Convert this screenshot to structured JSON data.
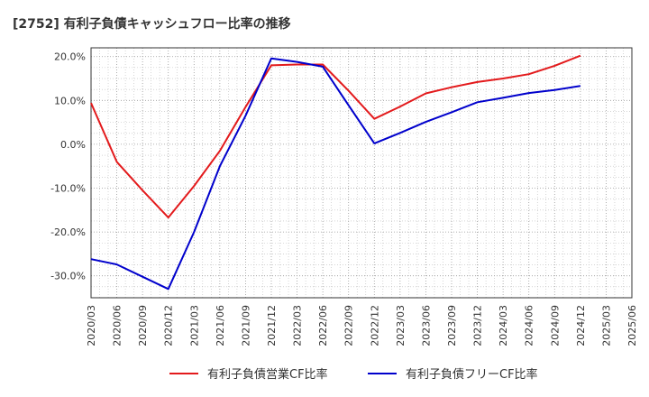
{
  "chart_data": {
    "type": "line",
    "title": "[2752]  有利子負債キャッシュフロー比率の推移",
    "xlabel": "",
    "ylabel": "",
    "ylim": [
      -35,
      22
    ],
    "y_ticks": [
      20,
      10,
      0,
      -10,
      -20,
      -30
    ],
    "y_tick_labels": [
      "20.0%",
      "10.0%",
      "0.0%",
      "-10.0%",
      "-20.0%",
      "-30.0%"
    ],
    "x_ticks": [
      "2020/03",
      "2020/06",
      "2020/09",
      "2020/12",
      "2021/03",
      "2021/06",
      "2021/09",
      "2021/12",
      "2022/03",
      "2022/06",
      "2022/09",
      "2022/12",
      "2023/03",
      "2023/06",
      "2023/09",
      "2023/12",
      "2024/03",
      "2024/06",
      "2024/09",
      "2024/12",
      "2025/03",
      "2025/06"
    ],
    "grid": true,
    "legend_position": "bottom",
    "series": [
      {
        "name": "有利子負債営業CF比率",
        "color": "#e31a1c",
        "points": [
          [
            "2020/03",
            9.4
          ],
          [
            "2020/06",
            -4.0
          ],
          [
            "2020/09",
            -10.5
          ],
          [
            "2020/12",
            -16.7
          ],
          [
            "2021/03",
            -9.5
          ],
          [
            "2021/06",
            -1.5
          ],
          [
            "2021/09",
            8.5
          ],
          [
            "2021/12",
            18.0
          ],
          [
            "2022/03",
            18.2
          ],
          [
            "2022/06",
            18.2
          ],
          [
            "2022/09",
            12.2
          ],
          [
            "2022/12",
            5.8
          ],
          [
            "2023/03",
            8.6
          ],
          [
            "2023/06",
            11.6
          ],
          [
            "2023/09",
            13.0
          ],
          [
            "2023/12",
            14.2
          ],
          [
            "2024/03",
            15.0
          ],
          [
            "2024/06",
            16.0
          ],
          [
            "2024/09",
            17.9
          ],
          [
            "2024/12",
            20.2
          ]
        ]
      },
      {
        "name": "有利子負債フリーCF比率",
        "color": "#0000cc",
        "points": [
          [
            "2020/03",
            -26.2
          ],
          [
            "2020/06",
            -27.4
          ],
          [
            "2020/09",
            -30.2
          ],
          [
            "2020/12",
            -33.0
          ],
          [
            "2021/03",
            -20.0
          ],
          [
            "2021/06",
            -5.0
          ],
          [
            "2021/09",
            6.5
          ],
          [
            "2021/12",
            19.6
          ],
          [
            "2022/03",
            18.8
          ],
          [
            "2022/06",
            17.7
          ],
          [
            "2022/09",
            8.9
          ],
          [
            "2022/12",
            0.2
          ],
          [
            "2023/03",
            2.6
          ],
          [
            "2023/06",
            5.1
          ],
          [
            "2023/09",
            7.3
          ],
          [
            "2023/12",
            9.6
          ],
          [
            "2024/03",
            10.6
          ],
          [
            "2024/06",
            11.7
          ],
          [
            "2024/09",
            12.4
          ],
          [
            "2024/12",
            13.3
          ]
        ]
      }
    ]
  }
}
